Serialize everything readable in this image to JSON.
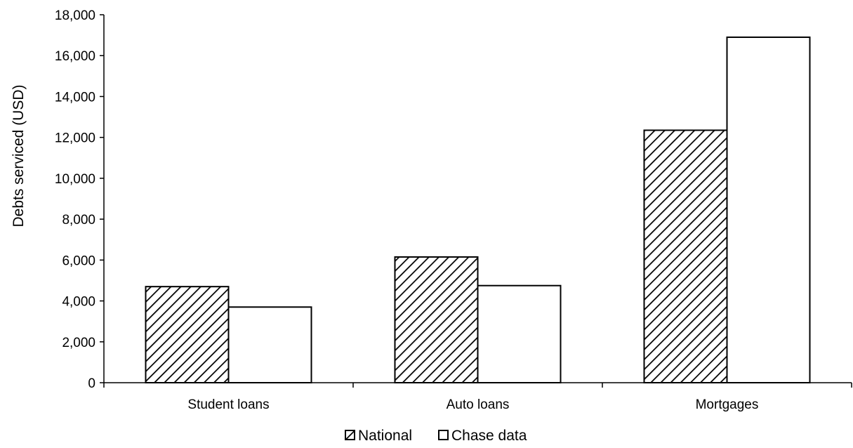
{
  "chart_data": {
    "type": "bar",
    "categories": [
      "Student loans",
      "Auto loans",
      "Mortgages"
    ],
    "series": [
      {
        "name": "National",
        "values": [
          4700,
          6150,
          12350
        ],
        "fill": "hatched"
      },
      {
        "name": "Chase data",
        "values": [
          3700,
          4750,
          16900
        ],
        "fill": "white"
      }
    ],
    "ylabel": "Debts serviced (USD)",
    "ylim": [
      0,
      18000
    ],
    "yticks": [
      0,
      2000,
      4000,
      6000,
      8000,
      10000,
      12000,
      14000,
      16000,
      18000
    ],
    "ytick_labels": [
      "0",
      "2,000",
      "4,000",
      "6,000",
      "8,000",
      "10,000",
      "12,000",
      "14,000",
      "16,000",
      "18,000"
    ],
    "grid": false,
    "legend_position": "bottom-center",
    "colors": {
      "stroke": "#000000",
      "background": "#ffffff"
    }
  }
}
